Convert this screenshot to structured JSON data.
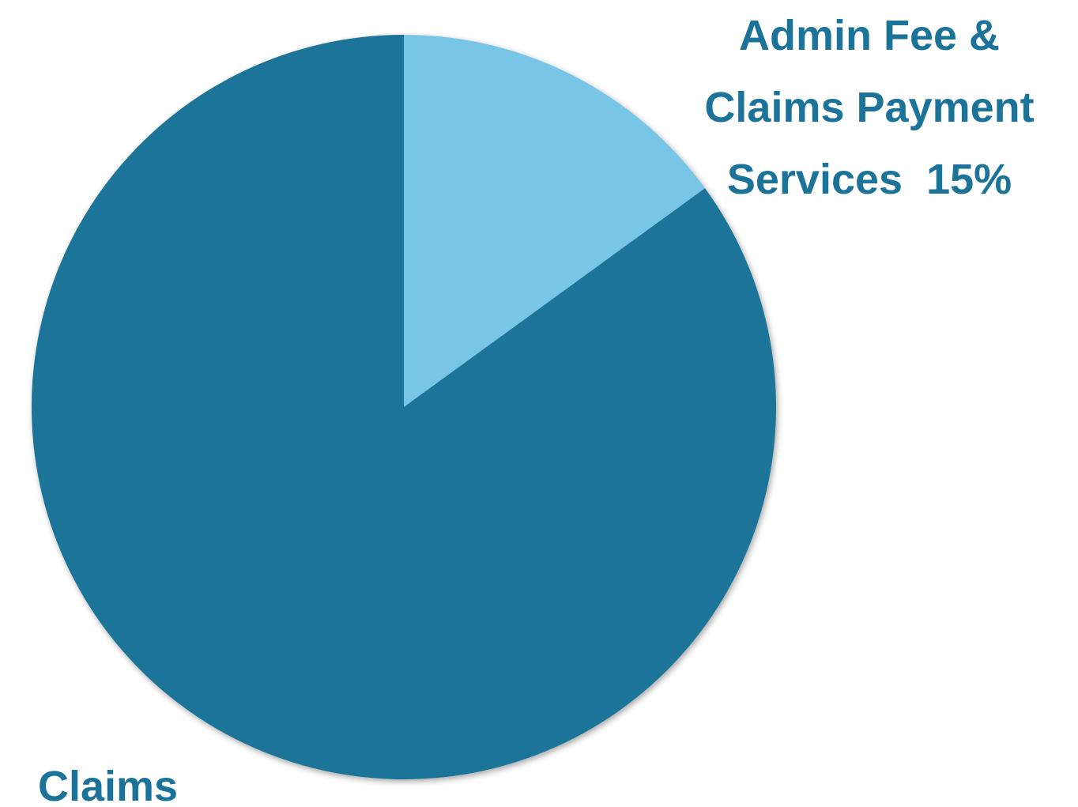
{
  "chart_data": {
    "type": "pie",
    "categories": [
      "Claims",
      "Admin Fee & Claims Payment Services"
    ],
    "values": [
      85,
      15
    ],
    "value_labels": [
      null,
      "15%"
    ],
    "colors": [
      "#1c7499",
      "#79c5e7"
    ]
  }
}
